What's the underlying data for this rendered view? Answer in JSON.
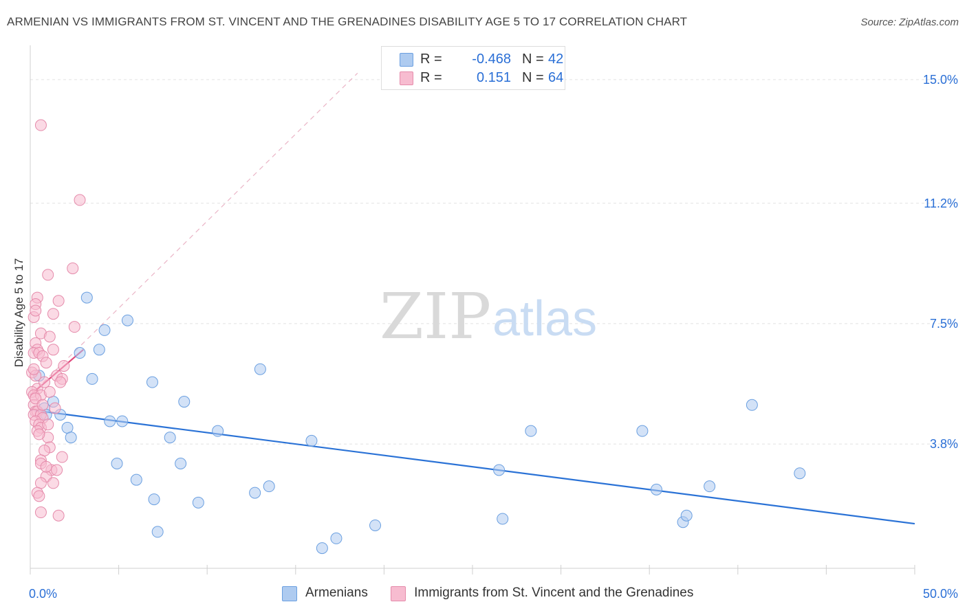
{
  "header": {
    "title": "ARMENIAN VS IMMIGRANTS FROM ST. VINCENT AND THE GRENADINES DISABILITY AGE 5 TO 17 CORRELATION CHART",
    "source": "Source: ZipAtlas.com"
  },
  "watermark": {
    "zip": "ZIP",
    "atlas": "atlas"
  },
  "legend": {
    "r_label": "R =",
    "n_label": "N =",
    "series": [
      {
        "name": "Armenians",
        "r": "-0.468",
        "n": "42"
      },
      {
        "name": "Immigrants from St. Vincent and the Grenadines",
        "r": "0.151",
        "n": "64"
      }
    ]
  },
  "colors": {
    "blue_fill": "#aecbf0",
    "blue_stroke": "#6a9fe0",
    "blue_line": "#2a72d6",
    "pink_fill": "#f7bcd0",
    "pink_stroke": "#e58aaa",
    "pink_line": "#e0487c",
    "value_text": "#2a6fd6"
  },
  "chart_data": {
    "type": "scatter",
    "title": "ARMENIAN VS IMMIGRANTS FROM ST. VINCENT AND THE GRENADINES DISABILITY AGE 5 TO 17 CORRELATION CHART",
    "xlabel": "",
    "ylabel": "Disability Age 5 to 17",
    "xlim": [
      0,
      50
    ],
    "ylim": [
      0,
      15.8
    ],
    "x_tick_labels": [
      "0.0%",
      "50.0%"
    ],
    "y_ticks": [
      3.8,
      7.5,
      11.2,
      15.0
    ],
    "y_tick_labels": [
      "3.8%",
      "7.5%",
      "11.2%",
      "15.0%"
    ],
    "series": [
      {
        "name": "Armenians",
        "color": "blue",
        "points": [
          [
            0.5,
            5.9
          ],
          [
            0.8,
            4.9
          ],
          [
            1.3,
            5.1
          ],
          [
            1.7,
            4.7
          ],
          [
            0.9,
            4.7
          ],
          [
            2.1,
            4.3
          ],
          [
            2.3,
            4.0
          ],
          [
            2.8,
            6.6
          ],
          [
            3.2,
            8.3
          ],
          [
            3.5,
            5.8
          ],
          [
            3.9,
            6.7
          ],
          [
            4.2,
            7.3
          ],
          [
            4.5,
            4.5
          ],
          [
            5.2,
            4.5
          ],
          [
            5.5,
            7.6
          ],
          [
            4.9,
            3.2
          ],
          [
            6.0,
            2.7
          ],
          [
            6.9,
            5.7
          ],
          [
            7.0,
            2.1
          ],
          [
            7.2,
            1.1
          ],
          [
            7.9,
            4.0
          ],
          [
            8.5,
            3.2
          ],
          [
            8.7,
            5.1
          ],
          [
            9.5,
            2.0
          ],
          [
            10.6,
            4.2
          ],
          [
            12.7,
            2.3
          ],
          [
            13.0,
            6.1
          ],
          [
            13.5,
            2.5
          ],
          [
            15.9,
            3.9
          ],
          [
            16.5,
            0.6
          ],
          [
            17.3,
            0.9
          ],
          [
            19.5,
            1.3
          ],
          [
            26.5,
            3.0
          ],
          [
            26.7,
            1.5
          ],
          [
            28.3,
            4.2
          ],
          [
            34.6,
            4.2
          ],
          [
            35.4,
            2.4
          ],
          [
            36.9,
            1.4
          ],
          [
            37.1,
            1.6
          ],
          [
            38.4,
            2.5
          ],
          [
            40.8,
            5.0
          ],
          [
            43.5,
            2.9
          ]
        ]
      },
      {
        "name": "Immigrants from St. Vincent and the Grenadines",
        "color": "pink",
        "points": [
          [
            0.6,
            13.6
          ],
          [
            2.8,
            11.3
          ],
          [
            2.4,
            9.2
          ],
          [
            1.0,
            9.0
          ],
          [
            0.4,
            8.3
          ],
          [
            0.3,
            8.1
          ],
          [
            0.2,
            7.7
          ],
          [
            0.3,
            7.9
          ],
          [
            1.3,
            7.8
          ],
          [
            1.6,
            8.2
          ],
          [
            2.5,
            7.4
          ],
          [
            0.6,
            7.2
          ],
          [
            1.1,
            7.1
          ],
          [
            0.3,
            6.9
          ],
          [
            0.4,
            6.7
          ],
          [
            0.2,
            6.6
          ],
          [
            0.5,
            6.6
          ],
          [
            0.7,
            6.5
          ],
          [
            1.3,
            6.7
          ],
          [
            0.9,
            6.3
          ],
          [
            1.9,
            6.2
          ],
          [
            0.1,
            6.0
          ],
          [
            0.3,
            5.9
          ],
          [
            1.5,
            5.9
          ],
          [
            1.8,
            5.8
          ],
          [
            1.7,
            5.7
          ],
          [
            0.4,
            5.5
          ],
          [
            0.1,
            5.4
          ],
          [
            0.2,
            5.3
          ],
          [
            0.6,
            5.3
          ],
          [
            1.1,
            5.4
          ],
          [
            0.2,
            5.0
          ],
          [
            0.3,
            4.8
          ],
          [
            0.4,
            4.8
          ],
          [
            0.2,
            4.7
          ],
          [
            0.6,
            4.7
          ],
          [
            0.7,
            4.6
          ],
          [
            0.3,
            4.5
          ],
          [
            0.5,
            4.4
          ],
          [
            0.6,
            4.3
          ],
          [
            0.4,
            4.2
          ],
          [
            1.0,
            4.0
          ],
          [
            1.1,
            3.7
          ],
          [
            0.8,
            3.6
          ],
          [
            1.8,
            3.4
          ],
          [
            0.6,
            3.3
          ],
          [
            0.6,
            3.2
          ],
          [
            1.2,
            3.0
          ],
          [
            0.9,
            2.8
          ],
          [
            1.3,
            2.6
          ],
          [
            0.6,
            2.6
          ],
          [
            0.4,
            2.3
          ],
          [
            0.5,
            2.2
          ],
          [
            0.6,
            1.7
          ],
          [
            1.6,
            1.6
          ],
          [
            1.5,
            3.0
          ],
          [
            0.9,
            3.1
          ],
          [
            0.2,
            6.1
          ],
          [
            0.8,
            5.7
          ],
          [
            0.5,
            4.1
          ],
          [
            1.4,
            4.9
          ],
          [
            0.3,
            5.2
          ],
          [
            1.0,
            4.4
          ],
          [
            0.7,
            5.0
          ]
        ]
      }
    ],
    "trend_lines": [
      {
        "series": "Armenians",
        "x": [
          0,
          50
        ],
        "y": [
          4.85,
          1.35
        ]
      },
      {
        "series": "Immigrants from St. Vincent and the Grenadines",
        "x": [
          0,
          3
        ],
        "y": [
          5.3,
          6.7
        ],
        "extended": {
          "x": [
            0,
            18.5
          ],
          "y": [
            5.3,
            15.2
          ]
        }
      }
    ]
  }
}
